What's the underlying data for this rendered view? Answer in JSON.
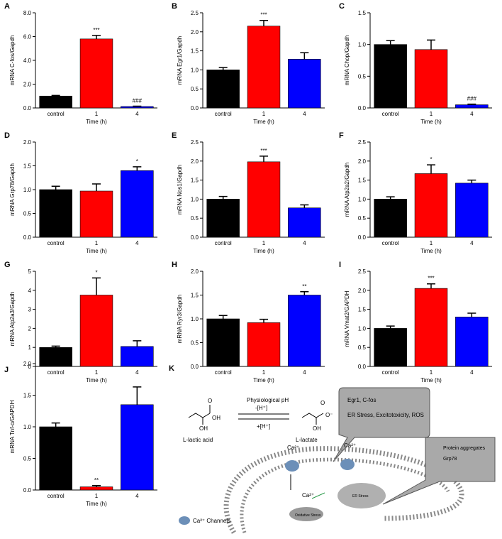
{
  "chart_data": [
    {
      "type": "bar",
      "panel": "A",
      "y_label": "mRNA C-fos/Gapdh",
      "x_label": "Time (h)",
      "categories": [
        "control",
        "1",
        "4"
      ],
      "values": [
        1.0,
        5.8,
        0.12
      ],
      "errors": [
        0.05,
        0.3,
        0.03
      ],
      "significance": [
        null,
        "***",
        "###"
      ],
      "colors": [
        "#000000",
        "#ff0000",
        "#0000ff"
      ],
      "ylim": [
        0,
        8
      ],
      "yticks": [
        {
          "value": 0,
          "label": "0.0"
        },
        {
          "value": 2,
          "label": "2.0"
        },
        {
          "value": 4,
          "label": "4.0"
        },
        {
          "value": 6,
          "label": "6.0"
        },
        {
          "value": 8,
          "label": "8.0"
        }
      ]
    },
    {
      "type": "bar",
      "panel": "B",
      "y_label": "mRNA Egr1/Gapdh",
      "x_label": "Time (h)",
      "categories": [
        "control",
        "1",
        "4"
      ],
      "values": [
        1.0,
        2.15,
        1.28
      ],
      "errors": [
        0.06,
        0.15,
        0.17
      ],
      "significance": [
        null,
        "***",
        null
      ],
      "colors": [
        "#000000",
        "#ff0000",
        "#0000ff"
      ],
      "ylim": [
        0,
        2.5
      ],
      "yticks": [
        {
          "value": 0,
          "label": "0.0"
        },
        0.5,
        {
          "value": 1,
          "label": "1.0"
        },
        1.5,
        {
          "value": 2,
          "label": "2.0"
        },
        2.5
      ]
    },
    {
      "type": "bar",
      "panel": "C",
      "y_label": "mRNA Chop/Gapdh",
      "x_label": "Time (h)",
      "categories": [
        "control",
        "1",
        "4"
      ],
      "values": [
        1.0,
        0.92,
        0.05
      ],
      "errors": [
        0.06,
        0.15,
        0.01
      ],
      "significance": [
        null,
        null,
        "###"
      ],
      "colors": [
        "#000000",
        "#ff0000",
        "#0000ff"
      ],
      "ylim": [
        0,
        1.5
      ],
      "yticks": [
        {
          "value": 0,
          "label": "0.0"
        },
        0.5,
        {
          "value": 1,
          "label": "1.0"
        },
        1.5
      ]
    },
    {
      "type": "bar",
      "panel": "D",
      "y_label": "mRNA Grp78/Gapdh",
      "x_label": "Time (h)",
      "categories": [
        "control",
        "1",
        "4"
      ],
      "values": [
        1.0,
        0.97,
        1.4
      ],
      "errors": [
        0.07,
        0.15,
        0.08
      ],
      "significance": [
        null,
        null,
        "*"
      ],
      "colors": [
        "#000000",
        "#ff0000",
        "#0000ff"
      ],
      "ylim": [
        0,
        2
      ],
      "yticks": [
        {
          "value": 0,
          "label": "0.0"
        },
        0.5,
        {
          "value": 1,
          "label": "1.0"
        },
        1.5,
        {
          "value": 2,
          "label": "2.0"
        }
      ]
    },
    {
      "type": "bar",
      "panel": "E",
      "y_label": "mRNA Nos1/Gapdh",
      "x_label": "Time (h)",
      "categories": [
        "control",
        "1",
        "4"
      ],
      "values": [
        1.0,
        1.98,
        0.77
      ],
      "errors": [
        0.07,
        0.15,
        0.08
      ],
      "significance": [
        null,
        "***",
        null
      ],
      "colors": [
        "#000000",
        "#ff0000",
        "#0000ff"
      ],
      "ylim": [
        0,
        2.5
      ],
      "yticks": [
        {
          "value": 0,
          "label": "0.0"
        },
        0.5,
        {
          "value": 1,
          "label": "1.0"
        },
        1.5,
        {
          "value": 2,
          "label": "2.0"
        },
        2.5
      ]
    },
    {
      "type": "bar",
      "panel": "F",
      "y_label": "mRNA Atp2a2/Gapdh",
      "x_label": "Time (h)",
      "categories": [
        "control",
        "1",
        "4"
      ],
      "values": [
        1.0,
        1.67,
        1.42
      ],
      "errors": [
        0.06,
        0.23,
        0.08
      ],
      "significance": [
        null,
        "*",
        null
      ],
      "colors": [
        "#000000",
        "#ff0000",
        "#0000ff"
      ],
      "ylim": [
        0,
        2.5
      ],
      "yticks": [
        {
          "value": 0,
          "label": "0.0"
        },
        0.5,
        {
          "value": 1,
          "label": "1.0"
        },
        1.5,
        {
          "value": 2,
          "label": "2.0"
        },
        2.5
      ]
    },
    {
      "type": "bar",
      "panel": "G",
      "y_label": "mRNA Atp2a3/Gapdh",
      "x_label": "Time (h)",
      "categories": [
        "control",
        "1",
        "4"
      ],
      "values": [
        1.0,
        3.75,
        1.05
      ],
      "errors": [
        0.07,
        0.9,
        0.3
      ],
      "significance": [
        null,
        "*",
        null
      ],
      "colors": [
        "#000000",
        "#ff0000",
        "#0000ff"
      ],
      "ylim": [
        0,
        5
      ],
      "yticks": [
        0,
        1,
        2,
        3,
        4,
        5
      ]
    },
    {
      "type": "bar",
      "panel": "H",
      "y_label": "mRNA Ryr3/Gapdh",
      "x_label": "Time (h)",
      "categories": [
        "control",
        "1",
        "4"
      ],
      "values": [
        1.0,
        0.92,
        1.5
      ],
      "errors": [
        0.07,
        0.07,
        0.07
      ],
      "significance": [
        null,
        null,
        "**"
      ],
      "colors": [
        "#000000",
        "#ff0000",
        "#0000ff"
      ],
      "ylim": [
        0,
        2
      ],
      "yticks": [
        {
          "value": 0,
          "label": "0.0"
        },
        0.5,
        {
          "value": 1,
          "label": "1.0"
        },
        1.5,
        {
          "value": 2,
          "label": "2.0"
        }
      ]
    },
    {
      "type": "bar",
      "panel": "I",
      "y_label": "mRNA Vmat2/GAPDH",
      "x_label": "Time (h)",
      "categories": [
        "control",
        "1",
        "4"
      ],
      "values": [
        1.0,
        2.05,
        1.3
      ],
      "errors": [
        0.06,
        0.12,
        0.1
      ],
      "significance": [
        null,
        "***",
        null
      ],
      "colors": [
        "#000000",
        "#ff0000",
        "#0000ff"
      ],
      "ylim": [
        0,
        2.5
      ],
      "yticks": [
        {
          "value": 0,
          "label": "0.0"
        },
        0.5,
        {
          "value": 1,
          "label": "1.0"
        },
        1.5,
        {
          "value": 2,
          "label": "2.0"
        },
        2.5
      ]
    },
    {
      "type": "bar",
      "panel": "J",
      "y_label": "mRNA Tnf-α/GAPDH",
      "x_label": "Time (h)",
      "categories": [
        "control",
        "1",
        "4"
      ],
      "values": [
        1.0,
        0.05,
        1.35
      ],
      "errors": [
        0.06,
        0.02,
        0.28
      ],
      "significance": [
        null,
        "**",
        null
      ],
      "colors": [
        "#000000",
        "#ff0000",
        "#0000ff"
      ],
      "ylim": [
        0,
        2
      ],
      "yticks": [
        {
          "value": 0,
          "label": "0.0"
        },
        0.5,
        {
          "value": 1,
          "label": "1.0"
        },
        1.5,
        {
          "value": 2,
          "label": "2.0"
        }
      ]
    }
  ],
  "diagram": {
    "panel": "K",
    "reaction_top": "Physiological pH",
    "forward": "-[H⁺]",
    "reverse": "+[H⁺]",
    "acid": "L-lactic acid",
    "base": "L-lactate",
    "acid_atoms": [
      "O",
      "OH",
      "OH"
    ],
    "base_atoms": [
      "O",
      "O⁻",
      "OH"
    ],
    "calcium": [
      "Ca²⁺",
      "Ca²⁺",
      "Ca²⁺"
    ],
    "callout_lines": [
      "Egr1, C-fos",
      "ER Stress, Excitotoxicity, ROS"
    ],
    "er_callout": [
      "Protein aggregates",
      "Grp78"
    ],
    "er": "ER Stress",
    "mito": "Oxidative Stress",
    "legend": "Ca²⁺ Channels"
  }
}
